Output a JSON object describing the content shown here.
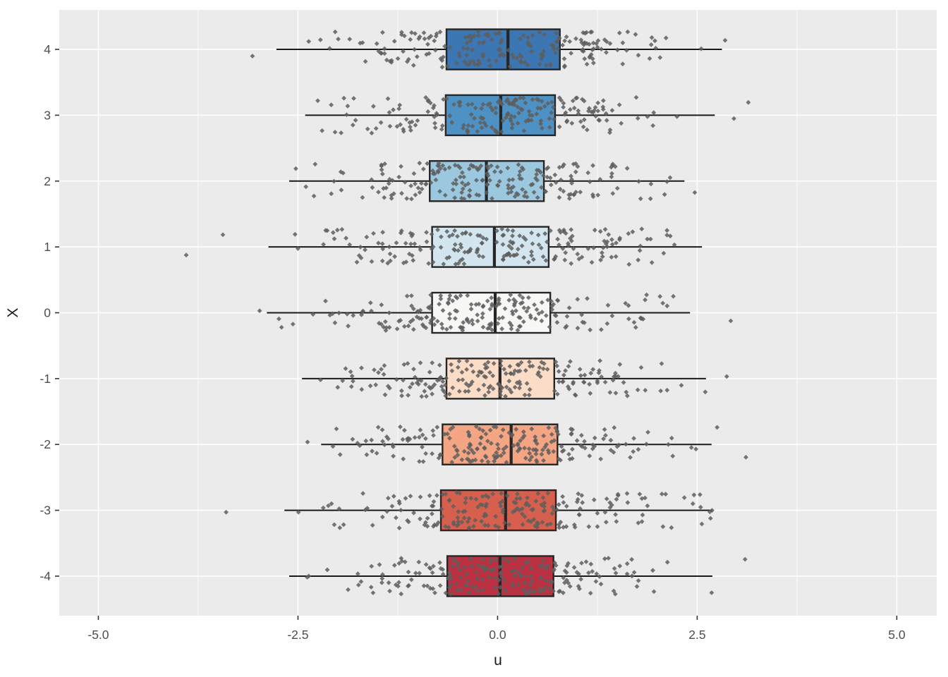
{
  "chart_data": {
    "type": "boxplot",
    "orientation": "horizontal",
    "title": "",
    "xlabel": "u",
    "ylabel": "X",
    "xlim": [
      -5.49,
      5.5
    ],
    "x_major_ticks": [
      -5.0,
      -2.5,
      0.0,
      2.5,
      5.0
    ],
    "x_tick_labels": [
      "-5.0",
      "-2.5",
      "0.0",
      "2.5",
      "5.0"
    ],
    "x_minor_ticks": [
      -3.75,
      -1.25,
      1.25,
      3.75
    ],
    "y_tick_labels": [
      "4",
      "3",
      "2",
      "1",
      "0",
      "-1",
      "-2",
      "-3",
      "-4"
    ],
    "grid": true,
    "legend": "none",
    "panel_bg": "#EBEBEB",
    "grid_color": "#FFFFFF",
    "box_stroke": "#262626",
    "whisker_color": "#1A1A1A",
    "point_color": "#5E5E5E",
    "point_opacity": 0.85,
    "point_shape": "diamond",
    "points_per_group": 200,
    "tick_text_color": "#4D4D4D",
    "axis_title_color": "#1A1A1A",
    "groups": [
      {
        "x": 4,
        "label": "4",
        "fill": "#3C76B3",
        "whisker_lo": -2.77,
        "q1": -0.64,
        "median": 0.13,
        "q3": 0.78,
        "whisker_hi": 2.81,
        "extra_points": [
          -3.07,
          2.85
        ],
        "seed": 101
      },
      {
        "x": 3,
        "label": "3",
        "fill": "#4E92C5",
        "whisker_lo": -2.41,
        "q1": -0.65,
        "median": 0.04,
        "q3": 0.72,
        "whisker_hi": 2.72,
        "extra_points": [
          2.96,
          3.14
        ],
        "seed": 102
      },
      {
        "x": 2,
        "label": "2",
        "fill": "#9BC7DF",
        "whisker_lo": -2.61,
        "q1": -0.85,
        "median": -0.14,
        "q3": 0.58,
        "whisker_hi": 2.34,
        "extra_points": [
          2.47
        ],
        "seed": 103
      },
      {
        "x": 1,
        "label": "1",
        "fill": "#D3E6F0",
        "whisker_lo": -2.87,
        "q1": -0.82,
        "median": -0.04,
        "q3": 0.64,
        "whisker_hi": 2.56,
        "extra_points": [
          -3.9,
          -3.44
        ],
        "seed": 104
      },
      {
        "x": 0,
        "label": "0",
        "fill": "#F7F7F6",
        "whisker_lo": -2.89,
        "q1": -0.82,
        "median": -0.03,
        "q3": 0.66,
        "whisker_hi": 2.41,
        "extra_points": [
          -2.98,
          2.92
        ],
        "seed": 105
      },
      {
        "x": -1,
        "label": "-1",
        "fill": "#FBDCC7",
        "whisker_lo": -2.45,
        "q1": -0.64,
        "median": 0.03,
        "q3": 0.71,
        "whisker_hi": 2.61,
        "extra_points": [
          2.87
        ],
        "seed": 106
      },
      {
        "x": -2,
        "label": "-2",
        "fill": "#F4A583",
        "whisker_lo": -2.21,
        "q1": -0.69,
        "median": 0.17,
        "q3": 0.75,
        "whisker_hi": 2.68,
        "extra_points": [
          -2.38,
          2.75,
          3.11
        ],
        "seed": 107
      },
      {
        "x": -3,
        "label": "-3",
        "fill": "#D6604D",
        "whisker_lo": -2.67,
        "q1": -0.71,
        "median": 0.1,
        "q3": 0.73,
        "whisker_hi": 2.69,
        "extra_points": [
          -3.4
        ],
        "seed": 108
      },
      {
        "x": -4,
        "label": "-4",
        "fill": "#BC3142",
        "whisker_lo": -2.61,
        "q1": -0.63,
        "median": 0.03,
        "q3": 0.7,
        "whisker_hi": 2.69,
        "extra_points": [
          3.1
        ],
        "seed": 109
      }
    ]
  }
}
